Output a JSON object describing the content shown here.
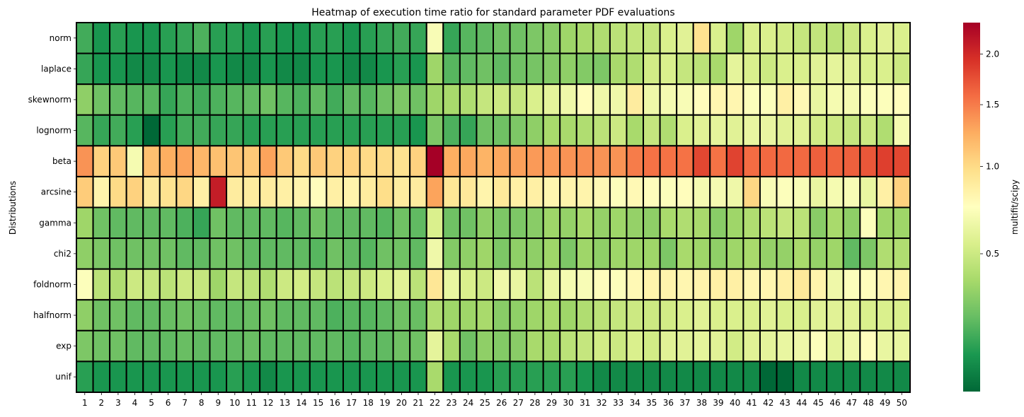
{
  "chart_data": {
    "type": "heatmap",
    "title": "Heatmap of execution time ratio for standard parameter PDF evaluations",
    "ylabel": "Distributions",
    "colorbar_label": "multifit/scipy",
    "colorbar_ticks": [
      0.5,
      1.0,
      1.5,
      2.0
    ],
    "colorbar_tick_labels": [
      "0.5",
      "1.0",
      "1.5",
      "2.0"
    ],
    "value_range": [
      0.2,
      2.35
    ],
    "colormap": "RdYlGn_r",
    "cell_border_color": "#000000",
    "x": [
      "1",
      "2",
      "3",
      "4",
      "5",
      "6",
      "7",
      "8",
      "9",
      "10",
      "11",
      "12",
      "13",
      "14",
      "15",
      "16",
      "17",
      "18",
      "19",
      "20",
      "21",
      "22",
      "23",
      "24",
      "25",
      "26",
      "27",
      "28",
      "29",
      "30",
      "31",
      "32",
      "33",
      "34",
      "35",
      "36",
      "37",
      "38",
      "39",
      "40",
      "41",
      "42",
      "43",
      "44",
      "45",
      "46",
      "47",
      "48",
      "49",
      "50"
    ],
    "y": [
      "norm",
      "laplace",
      "skewnorm",
      "lognorm",
      "beta",
      "arcsine",
      "gamma",
      "chi2",
      "foldnorm",
      "halfnorm",
      "exp",
      "unif"
    ],
    "values": [
      [
        0.25,
        0.22,
        0.23,
        0.22,
        0.22,
        0.23,
        0.24,
        0.26,
        0.23,
        0.23,
        0.22,
        0.23,
        0.22,
        0.22,
        0.23,
        0.23,
        0.22,
        0.23,
        0.24,
        0.25,
        0.24,
        0.7,
        0.24,
        0.27,
        0.28,
        0.3,
        0.3,
        0.32,
        0.34,
        0.38,
        0.4,
        0.42,
        0.45,
        0.47,
        0.48,
        0.55,
        0.58,
        0.95,
        0.55,
        0.38,
        0.55,
        0.55,
        0.52,
        0.48,
        0.47,
        0.45,
        0.5,
        0.55,
        0.58,
        0.55
      ],
      [
        0.24,
        0.22,
        0.22,
        0.21,
        0.21,
        0.22,
        0.21,
        0.21,
        0.22,
        0.21,
        0.21,
        0.22,
        0.21,
        0.21,
        0.22,
        0.22,
        0.21,
        0.21,
        0.22,
        0.23,
        0.22,
        0.38,
        0.27,
        0.28,
        0.3,
        0.28,
        0.3,
        0.31,
        0.33,
        0.35,
        0.33,
        0.32,
        0.4,
        0.42,
        0.52,
        0.55,
        0.48,
        0.45,
        0.4,
        0.6,
        0.55,
        0.5,
        0.55,
        0.55,
        0.58,
        0.6,
        0.58,
        0.55,
        0.55,
        0.5
      ],
      [
        0.35,
        0.3,
        0.28,
        0.27,
        0.27,
        0.24,
        0.26,
        0.25,
        0.26,
        0.27,
        0.28,
        0.3,
        0.27,
        0.26,
        0.28,
        0.25,
        0.28,
        0.27,
        0.3,
        0.32,
        0.3,
        0.38,
        0.4,
        0.42,
        0.48,
        0.5,
        0.48,
        0.55,
        0.6,
        0.65,
        0.75,
        0.65,
        0.65,
        0.88,
        0.65,
        0.68,
        0.7,
        0.75,
        0.8,
        0.8,
        0.72,
        0.72,
        0.85,
        0.78,
        0.62,
        0.68,
        0.68,
        0.72,
        0.72,
        0.75
      ],
      [
        0.27,
        0.24,
        0.25,
        0.23,
        0.2,
        0.23,
        0.25,
        0.25,
        0.24,
        0.24,
        0.23,
        0.23,
        0.23,
        0.23,
        0.23,
        0.23,
        0.23,
        0.23,
        0.23,
        0.23,
        0.22,
        0.32,
        0.26,
        0.24,
        0.3,
        0.3,
        0.32,
        0.35,
        0.4,
        0.4,
        0.42,
        0.45,
        0.5,
        0.4,
        0.48,
        0.42,
        0.55,
        0.58,
        0.6,
        0.58,
        0.62,
        0.62,
        0.58,
        0.58,
        0.52,
        0.5,
        0.48,
        0.5,
        0.42,
        0.68
      ],
      [
        1.38,
        1.05,
        1.1,
        0.68,
        1.15,
        1.25,
        1.3,
        1.2,
        1.15,
        1.12,
        1.1,
        1.3,
        1.1,
        1.0,
        1.1,
        1.05,
        1.05,
        1.0,
        1.0,
        0.95,
        1.05,
        2.35,
        1.25,
        1.28,
        1.22,
        1.28,
        1.32,
        1.35,
        1.35,
        1.38,
        1.4,
        1.38,
        1.38,
        1.5,
        1.55,
        1.55,
        1.55,
        1.8,
        1.55,
        1.82,
        1.58,
        1.6,
        1.6,
        1.6,
        1.65,
        1.62,
        1.65,
        1.7,
        1.85,
        1.8
      ],
      [
        1.08,
        0.82,
        1.0,
        1.05,
        0.9,
        0.95,
        1.02,
        0.85,
        2.1,
        0.88,
        0.88,
        0.88,
        0.85,
        0.82,
        0.75,
        0.85,
        0.82,
        0.88,
        0.98,
        0.88,
        0.88,
        1.3,
        0.92,
        0.9,
        0.82,
        0.9,
        0.85,
        0.85,
        0.8,
        0.82,
        0.82,
        0.78,
        0.72,
        0.78,
        0.75,
        0.72,
        0.75,
        0.68,
        0.68,
        0.65,
        1.02,
        0.7,
        0.72,
        0.7,
        0.62,
        0.68,
        0.7,
        0.62,
        0.85,
        1.05
      ],
      [
        0.38,
        0.3,
        0.28,
        0.28,
        0.28,
        0.28,
        0.26,
        0.24,
        0.3,
        0.28,
        0.28,
        0.28,
        0.27,
        0.28,
        0.3,
        0.28,
        0.28,
        0.28,
        0.27,
        0.3,
        0.28,
        0.55,
        0.3,
        0.3,
        0.35,
        0.32,
        0.32,
        0.34,
        0.38,
        0.36,
        0.4,
        0.36,
        0.38,
        0.36,
        0.35,
        0.4,
        0.42,
        0.4,
        0.34,
        0.38,
        0.42,
        0.45,
        0.48,
        0.45,
        0.34,
        0.4,
        0.35,
        0.72,
        0.38,
        0.38
      ],
      [
        0.35,
        0.32,
        0.3,
        0.3,
        0.3,
        0.3,
        0.28,
        0.28,
        0.3,
        0.3,
        0.28,
        0.28,
        0.28,
        0.28,
        0.27,
        0.3,
        0.28,
        0.27,
        0.3,
        0.3,
        0.28,
        0.65,
        0.33,
        0.35,
        0.38,
        0.32,
        0.35,
        0.35,
        0.38,
        0.32,
        0.38,
        0.35,
        0.38,
        0.38,
        0.38,
        0.32,
        0.4,
        0.38,
        0.35,
        0.38,
        0.4,
        0.36,
        0.36,
        0.4,
        0.36,
        0.38,
        0.28,
        0.32,
        0.42,
        0.42
      ],
      [
        0.72,
        0.45,
        0.42,
        0.5,
        0.48,
        0.45,
        0.5,
        0.48,
        0.38,
        0.48,
        0.45,
        0.42,
        0.5,
        0.52,
        0.48,
        0.45,
        0.48,
        0.5,
        0.55,
        0.58,
        0.45,
        0.92,
        0.62,
        0.55,
        0.5,
        0.65,
        0.62,
        0.45,
        0.62,
        0.68,
        0.7,
        0.75,
        0.72,
        0.78,
        0.82,
        0.82,
        0.8,
        0.82,
        0.85,
        0.85,
        0.8,
        0.8,
        0.85,
        0.9,
        0.82,
        0.65,
        0.72,
        0.75,
        0.8,
        0.82
      ],
      [
        0.35,
        0.3,
        0.3,
        0.28,
        0.28,
        0.29,
        0.3,
        0.29,
        0.28,
        0.28,
        0.29,
        0.3,
        0.28,
        0.28,
        0.28,
        0.26,
        0.27,
        0.27,
        0.28,
        0.3,
        0.29,
        0.42,
        0.38,
        0.38,
        0.4,
        0.34,
        0.35,
        0.38,
        0.4,
        0.38,
        0.42,
        0.45,
        0.48,
        0.5,
        0.5,
        0.52,
        0.55,
        0.58,
        0.55,
        0.55,
        0.55,
        0.58,
        0.55,
        0.55,
        0.58,
        0.58,
        0.58,
        0.55,
        0.55,
        0.55
      ],
      [
        0.32,
        0.3,
        0.3,
        0.28,
        0.28,
        0.28,
        0.29,
        0.28,
        0.28,
        0.28,
        0.29,
        0.28,
        0.28,
        0.28,
        0.28,
        0.28,
        0.27,
        0.28,
        0.28,
        0.3,
        0.3,
        0.6,
        0.4,
        0.3,
        0.35,
        0.33,
        0.34,
        0.4,
        0.4,
        0.45,
        0.48,
        0.52,
        0.5,
        0.55,
        0.52,
        0.58,
        0.58,
        0.6,
        0.58,
        0.52,
        0.58,
        0.6,
        0.62,
        0.65,
        0.72,
        0.6,
        0.65,
        0.75,
        0.62,
        0.62
      ],
      [
        0.23,
        0.22,
        0.22,
        0.22,
        0.22,
        0.22,
        0.22,
        0.22,
        0.22,
        0.23,
        0.22,
        0.21,
        0.22,
        0.22,
        0.22,
        0.22,
        0.22,
        0.22,
        0.22,
        0.22,
        0.22,
        0.4,
        0.22,
        0.22,
        0.22,
        0.23,
        0.23,
        0.23,
        0.23,
        0.23,
        0.22,
        0.21,
        0.21,
        0.21,
        0.21,
        0.21,
        0.21,
        0.21,
        0.21,
        0.21,
        0.21,
        0.2,
        0.2,
        0.21,
        0.21,
        0.21,
        0.21,
        0.21,
        0.21,
        0.21
      ]
    ]
  }
}
